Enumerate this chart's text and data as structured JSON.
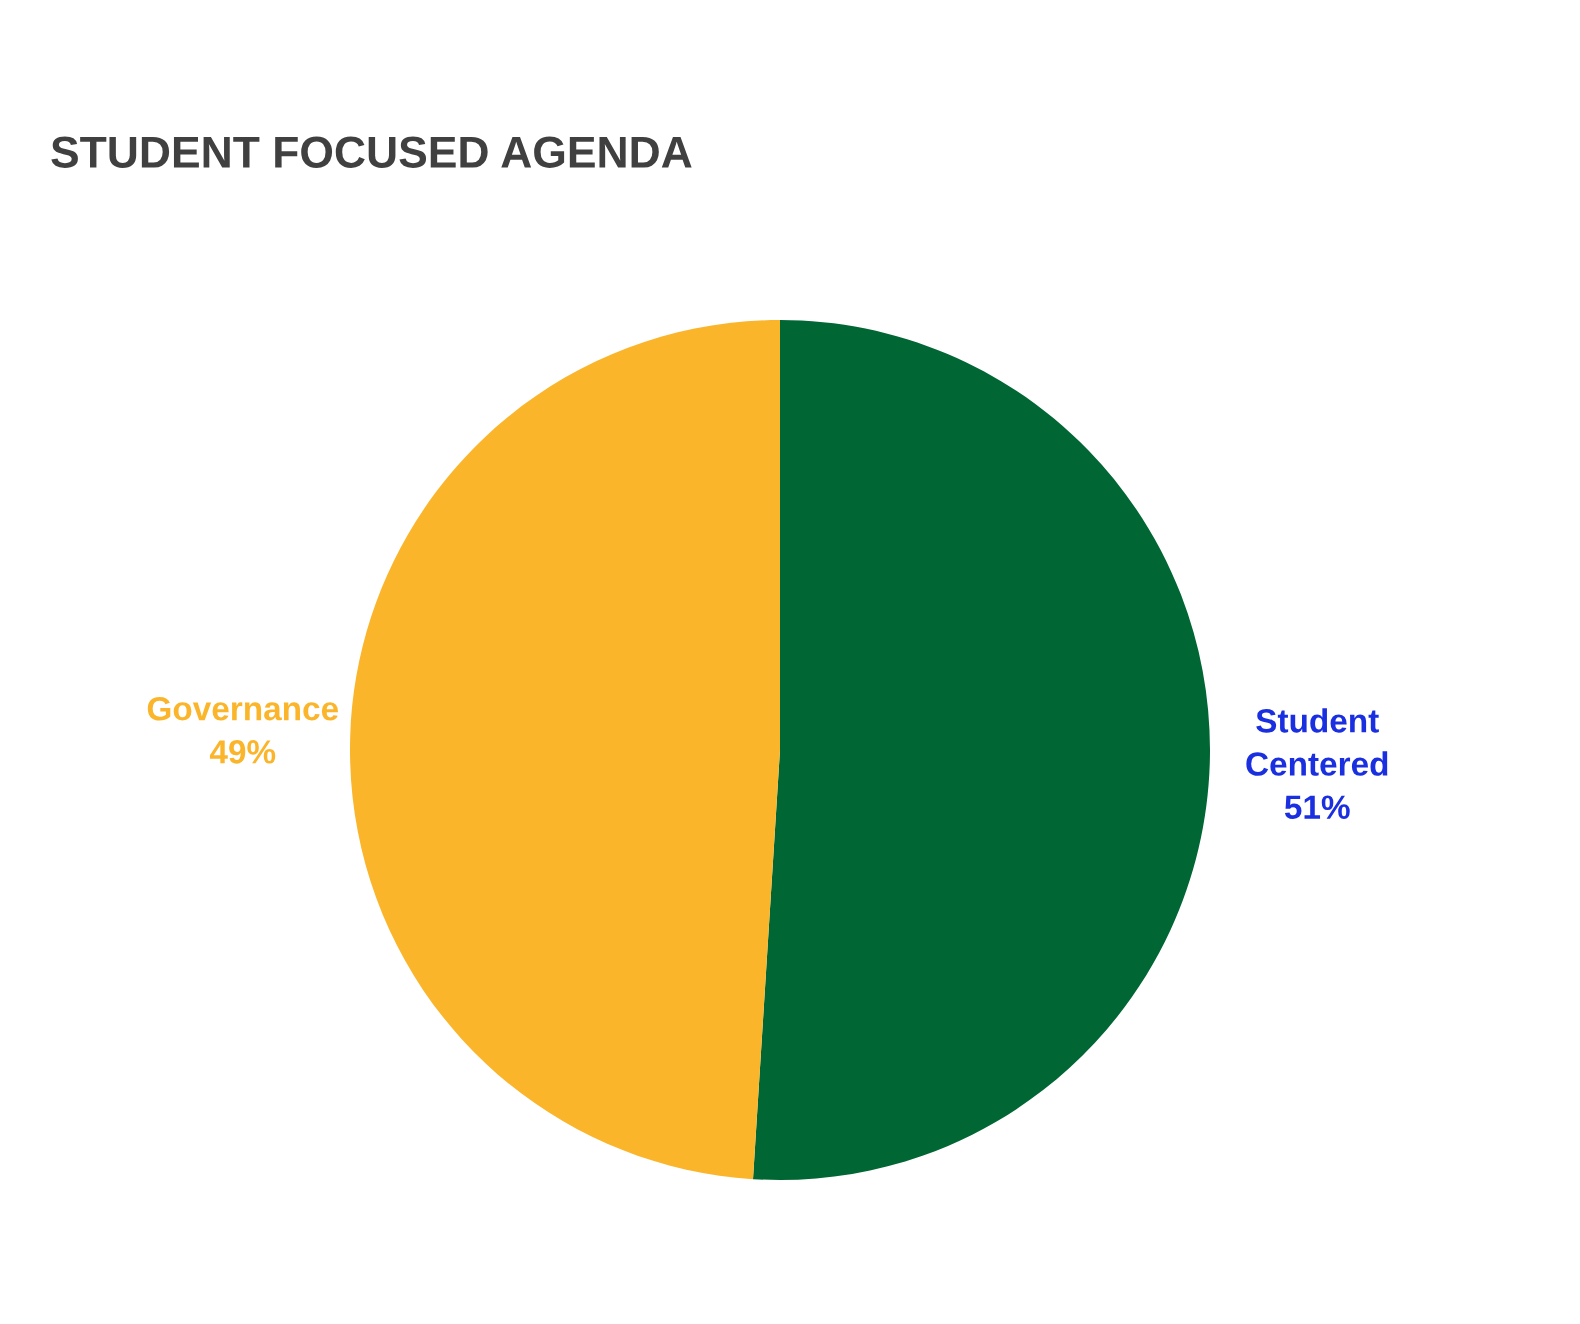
{
  "chart_data": {
    "type": "pie",
    "title": "STUDENT FOCUSED AGENDA",
    "categories": [
      "Student Centered",
      "Governance"
    ],
    "values": [
      51,
      49
    ],
    "colors": [
      "#006633",
      "#fbb52b"
    ],
    "value_labels": [
      "51%",
      "49%"
    ],
    "legend": false
  }
}
